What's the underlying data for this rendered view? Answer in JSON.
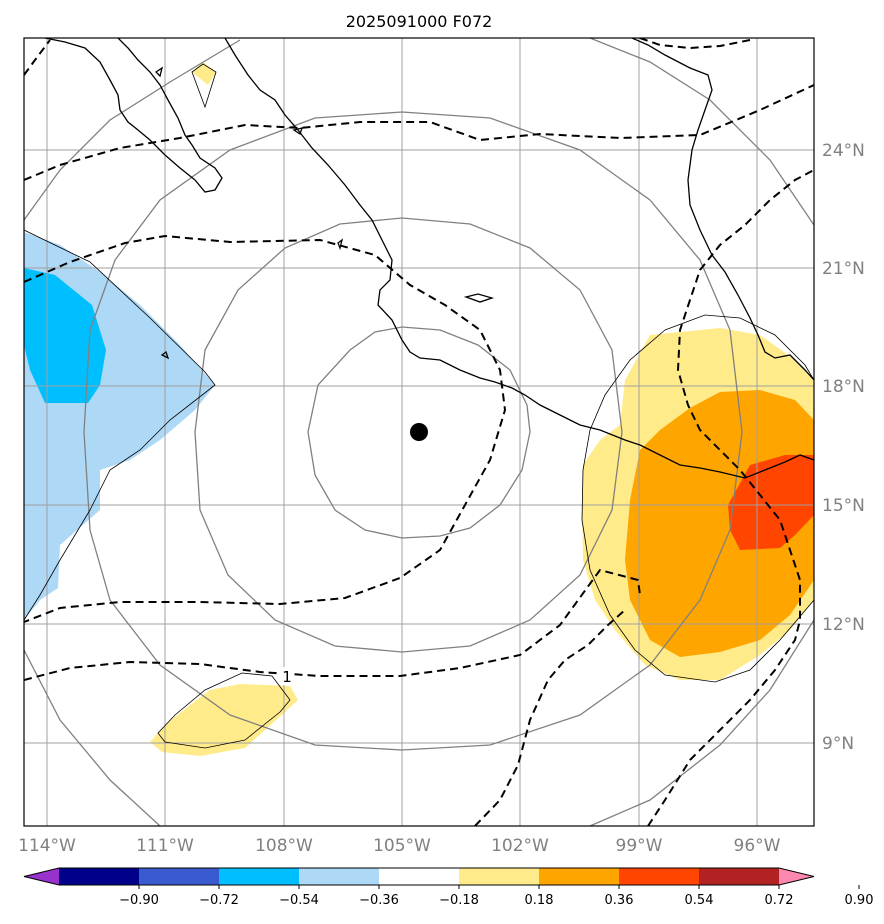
{
  "title": "2025091000 F072",
  "lon_labels": [
    "114°W",
    "111°W",
    "108°W",
    "105°W",
    "102°W",
    "99°W",
    "96°W"
  ],
  "lat_labels": [
    "24°N",
    "21°N",
    "18°N",
    "15°N",
    "12°N",
    "9°N"
  ],
  "contour_label": "1",
  "colorbar": {
    "tick_labels": [
      "−0.90",
      "−0.72",
      "−0.54",
      "−0.36",
      "−0.18",
      "0.18",
      "0.36",
      "0.54",
      "0.72",
      "0.90"
    ],
    "colors": [
      "#9932cc",
      "#00008b",
      "#3a5bd0",
      "#00bfff",
      "#add8f6",
      "#ffffff",
      "#ffeb8a",
      "#ffa500",
      "#ff4500",
      "#b22222",
      "#ff88b0"
    ]
  },
  "map_colors": {
    "coastline": "#000000",
    "gridline": "#a0a0a0",
    "range_rings": "#808080",
    "center_marker": "#000000"
  }
}
